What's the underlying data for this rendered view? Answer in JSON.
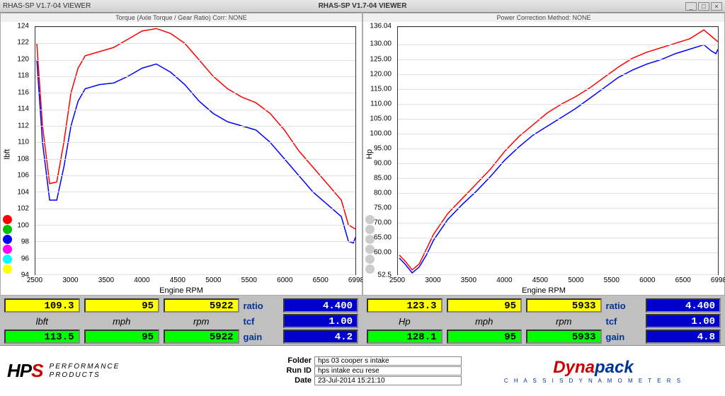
{
  "window": {
    "app_title": "RHAS-SP V1.7-04  VIEWER",
    "title_center": "RHAS-SP V1.7-04  VIEWER"
  },
  "left_chart": {
    "header": "Torque (Axle Torque / Gear Ratio)    Corr: NONE",
    "type": "line",
    "y_label": "lbft",
    "x_label": "Engine RPM",
    "ylim": [
      94,
      124
    ],
    "y_ticks": [
      94,
      96,
      98,
      100,
      102,
      104,
      106,
      108,
      110,
      112,
      114,
      116,
      118,
      120,
      122,
      124
    ],
    "xlim": [
      2500,
      6998
    ],
    "x_ticks": [
      2500,
      3000,
      3500,
      4000,
      4500,
      5000,
      5500,
      6000,
      6500,
      6998
    ],
    "legend_colors": [
      "#ff0000",
      "#00c000",
      "#0000ff",
      "#ff00ff",
      "#00ffff",
      "#ffff00"
    ],
    "grid_color": "#e0e0e0",
    "series": [
      {
        "color": "#ff0000",
        "width": 1.5,
        "points": [
          [
            2520,
            122
          ],
          [
            2600,
            112
          ],
          [
            2700,
            105
          ],
          [
            2800,
            105.2
          ],
          [
            2900,
            110
          ],
          [
            3000,
            116
          ],
          [
            3100,
            119
          ],
          [
            3200,
            120.5
          ],
          [
            3400,
            121
          ],
          [
            3600,
            121.5
          ],
          [
            3800,
            122.5
          ],
          [
            4000,
            123.5
          ],
          [
            4200,
            123.8
          ],
          [
            4400,
            123.2
          ],
          [
            4600,
            122
          ],
          [
            4800,
            120
          ],
          [
            5000,
            118
          ],
          [
            5200,
            116.5
          ],
          [
            5400,
            115.5
          ],
          [
            5600,
            114.8
          ],
          [
            5800,
            113.5
          ],
          [
            6000,
            111.5
          ],
          [
            6200,
            109
          ],
          [
            6400,
            107
          ],
          [
            6600,
            105
          ],
          [
            6800,
            103
          ],
          [
            6900,
            100
          ],
          [
            6998,
            99.5
          ]
        ]
      },
      {
        "color": "#0000ff",
        "width": 1.5,
        "points": [
          [
            2520,
            120
          ],
          [
            2600,
            110
          ],
          [
            2700,
            103
          ],
          [
            2800,
            103
          ],
          [
            2900,
            107
          ],
          [
            3000,
            112
          ],
          [
            3100,
            115
          ],
          [
            3200,
            116.5
          ],
          [
            3400,
            117
          ],
          [
            3600,
            117.2
          ],
          [
            3800,
            118
          ],
          [
            4000,
            119
          ],
          [
            4200,
            119.5
          ],
          [
            4400,
            118.5
          ],
          [
            4600,
            117
          ],
          [
            4800,
            115
          ],
          [
            5000,
            113.5
          ],
          [
            5200,
            112.5
          ],
          [
            5400,
            112
          ],
          [
            5600,
            111.5
          ],
          [
            5800,
            110
          ],
          [
            6000,
            108
          ],
          [
            6200,
            106
          ],
          [
            6400,
            104
          ],
          [
            6600,
            102.5
          ],
          [
            6800,
            101
          ],
          [
            6900,
            98
          ],
          [
            6970,
            97.8
          ],
          [
            6998,
            98.5
          ]
        ]
      }
    ]
  },
  "right_chart": {
    "header": "Power    Correction Method: NONE",
    "type": "line",
    "y_label": "Hp",
    "x_label": "Engine RPM",
    "ylim": [
      52.5,
      136.04
    ],
    "y_ticks_labels": [
      "52.5",
      "60.00",
      "65.00",
      "70.00",
      "75.00",
      "80.00",
      "85.00",
      "90.00",
      "95.00",
      "100.00",
      "105.00",
      "110.00",
      "115.00",
      "120.00",
      "125.00",
      "130.00",
      "136.04"
    ],
    "y_ticks": [
      52.5,
      60,
      65,
      70,
      75,
      80,
      85,
      90,
      95,
      100,
      105,
      110,
      115,
      120,
      125,
      130,
      136.04
    ],
    "xlim": [
      2500,
      6998
    ],
    "x_ticks": [
      2500,
      3000,
      3500,
      4000,
      4500,
      5000,
      5500,
      6000,
      6500,
      6998
    ],
    "legend_colors": [
      "#cccccc",
      "#cccccc",
      "#cccccc",
      "#cccccc",
      "#cccccc",
      "#cccccc"
    ],
    "grid_color": "#e0e0e0",
    "series": [
      {
        "color": "#ff0000",
        "width": 1.5,
        "points": [
          [
            2520,
            59
          ],
          [
            2600,
            57
          ],
          [
            2700,
            54
          ],
          [
            2800,
            56
          ],
          [
            2900,
            61
          ],
          [
            3000,
            66
          ],
          [
            3200,
            73
          ],
          [
            3400,
            78
          ],
          [
            3600,
            83
          ],
          [
            3800,
            88
          ],
          [
            4000,
            94
          ],
          [
            4200,
            99
          ],
          [
            4400,
            103
          ],
          [
            4600,
            107
          ],
          [
            4800,
            110
          ],
          [
            5000,
            112.5
          ],
          [
            5200,
            115.5
          ],
          [
            5400,
            119
          ],
          [
            5600,
            122.5
          ],
          [
            5800,
            125.5
          ],
          [
            6000,
            127.5
          ],
          [
            6200,
            129
          ],
          [
            6400,
            130.5
          ],
          [
            6600,
            132
          ],
          [
            6800,
            135
          ],
          [
            6900,
            133
          ],
          [
            6998,
            131
          ]
        ]
      },
      {
        "color": "#0000ff",
        "width": 1.5,
        "points": [
          [
            2520,
            58
          ],
          [
            2600,
            56
          ],
          [
            2700,
            53
          ],
          [
            2800,
            55
          ],
          [
            2900,
            59
          ],
          [
            3000,
            64
          ],
          [
            3200,
            71
          ],
          [
            3400,
            76
          ],
          [
            3600,
            80.5
          ],
          [
            3800,
            85.5
          ],
          [
            4000,
            91
          ],
          [
            4200,
            95.5
          ],
          [
            4400,
            99.5
          ],
          [
            4600,
            102.5
          ],
          [
            4800,
            105.5
          ],
          [
            5000,
            108.5
          ],
          [
            5200,
            112
          ],
          [
            5400,
            115.5
          ],
          [
            5600,
            119
          ],
          [
            5800,
            121.5
          ],
          [
            6000,
            123.5
          ],
          [
            6200,
            125
          ],
          [
            6400,
            127
          ],
          [
            6600,
            128.5
          ],
          [
            6800,
            130
          ],
          [
            6900,
            128
          ],
          [
            6970,
            127
          ],
          [
            6998,
            128.5
          ]
        ]
      }
    ]
  },
  "readouts": {
    "left": {
      "row1": {
        "a": "109.3",
        "b": "95",
        "c": "5922",
        "label": "ratio",
        "d": "4.400"
      },
      "row2_units": {
        "a": "lbft",
        "b": "mph",
        "c": "rpm",
        "label": "tcf",
        "d": "1.00"
      },
      "row3": {
        "a": "113.5",
        "b": "95",
        "c": "5922",
        "label": "gain",
        "d": "4.2"
      }
    },
    "right": {
      "row1": {
        "a": "123.3",
        "b": "95",
        "c": "5933",
        "label": "ratio",
        "d": "4.400"
      },
      "row2_units": {
        "a": "Hp",
        "b": "mph",
        "c": "rpm",
        "label": "tcf",
        "d": "1.00"
      },
      "row3": {
        "a": "128.1",
        "b": "95",
        "c": "5933",
        "label": "gain",
        "d": "4.8"
      }
    }
  },
  "footer": {
    "meta": {
      "folder_label": "Folder",
      "folder": "hps 03 cooper s intake",
      "runid_label": "Run ID",
      "runid": "hps intake ecu rese",
      "date_label": "Date",
      "date": "23-Jul-2014  15:21:10"
    },
    "hps_perf_line1": "PERFORMANCE",
    "hps_perf_line2": "PRODUCTS",
    "dyna_sub": "C H A S S I S   D Y N A M O M E T E R S"
  }
}
